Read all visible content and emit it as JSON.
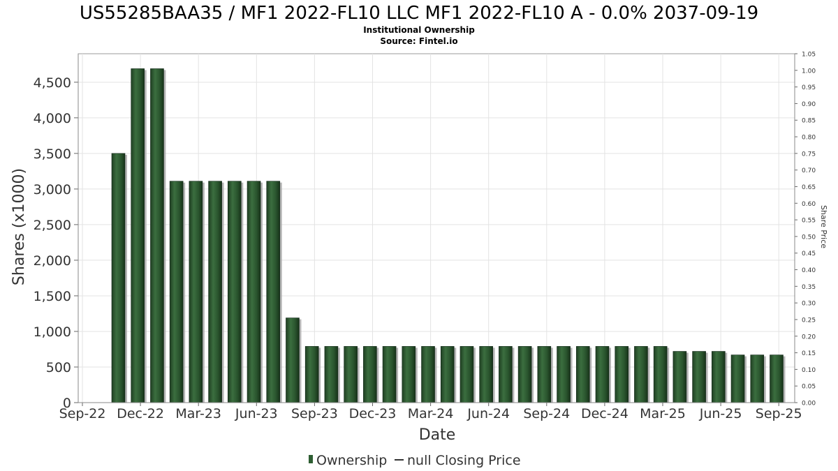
{
  "chart_data": {
    "type": "bar",
    "title": "US55285BAA35 / MF1 2022-FL10 LLC MF1 2022-FL10 A - 0.0% 2037-09-19",
    "subtitle": "Institutional Ownership",
    "source": "Source: Fintel.io",
    "xlabel": "Date",
    "ylabel": "Shares (x1000)",
    "y2label": "Share Price",
    "x_ticks": [
      "Sep-22",
      "Dec-22",
      "Mar-23",
      "Jun-23",
      "Sep-23",
      "Dec-23",
      "Mar-24",
      "Jun-24",
      "Sep-24",
      "Dec-24",
      "Mar-25",
      "Jun-25",
      "Sep-25"
    ],
    "y_ticks": [
      "0",
      "500",
      "1,000",
      "1,500",
      "2,000",
      "2,500",
      "3,000",
      "3,500",
      "4,000",
      "4,500"
    ],
    "y2_ticks": [
      "0.00",
      "0.05",
      "0.10",
      "0.15",
      "0.20",
      "0.25",
      "0.30",
      "0.35",
      "0.40",
      "0.45",
      "0.50",
      "0.55",
      "0.60",
      "0.65",
      "0.70",
      "0.75",
      "0.80",
      "0.85",
      "0.90",
      "0.95",
      "1.00",
      "1.05"
    ],
    "ylim": [
      0,
      4900
    ],
    "y2lim": [
      0,
      1.05
    ],
    "grid": true,
    "legend_position": "bottom",
    "series": [
      {
        "name": "Ownership",
        "color": "#2e5e32",
        "values": [
          3500,
          4690,
          4690,
          3110,
          3110,
          3110,
          3110,
          3110,
          3110,
          1190,
          790,
          790,
          790,
          790,
          790,
          790,
          790,
          790,
          790,
          790,
          790,
          790,
          790,
          790,
          790,
          790,
          790,
          790,
          790,
          720,
          720,
          720,
          670,
          670,
          670
        ]
      },
      {
        "name": "null Closing Price",
        "color": "#333333",
        "values": []
      }
    ]
  }
}
